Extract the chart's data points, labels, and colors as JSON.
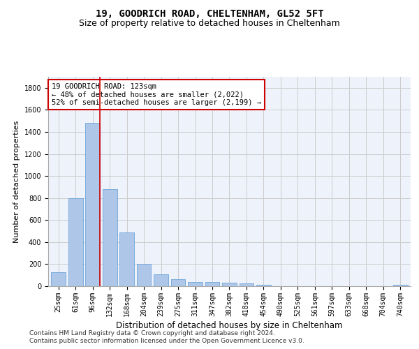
{
  "title1": "19, GOODRICH ROAD, CHELTENHAM, GL52 5FT",
  "title2": "Size of property relative to detached houses in Cheltenham",
  "xlabel": "Distribution of detached houses by size in Cheltenham",
  "ylabel": "Number of detached properties",
  "categories": [
    "25sqm",
    "61sqm",
    "96sqm",
    "132sqm",
    "168sqm",
    "204sqm",
    "239sqm",
    "275sqm",
    "311sqm",
    "347sqm",
    "382sqm",
    "418sqm",
    "454sqm",
    "490sqm",
    "525sqm",
    "561sqm",
    "597sqm",
    "633sqm",
    "668sqm",
    "704sqm",
    "740sqm"
  ],
  "values": [
    125,
    800,
    1480,
    880,
    490,
    205,
    105,
    65,
    40,
    35,
    30,
    25,
    10,
    0,
    0,
    0,
    0,
    0,
    0,
    0,
    15
  ],
  "bar_color": "#aec6e8",
  "bar_edgecolor": "#5b9bd5",
  "annotation_text": "19 GOODRICH ROAD: 123sqm\n← 48% of detached houses are smaller (2,022)\n52% of semi-detached houses are larger (2,199) →",
  "annotation_box_color": "#ffffff",
  "annotation_box_edgecolor": "#cc0000",
  "vline_color": "#cc0000",
  "ylim": [
    0,
    1900
  ],
  "yticks": [
    0,
    200,
    400,
    600,
    800,
    1000,
    1200,
    1400,
    1600,
    1800
  ],
  "grid_color": "#cccccc",
  "background_color": "#eef2fb",
  "footer1": "Contains HM Land Registry data © Crown copyright and database right 2024.",
  "footer2": "Contains public sector information licensed under the Open Government Licence v3.0.",
  "title1_fontsize": 10,
  "title2_fontsize": 9,
  "xlabel_fontsize": 8.5,
  "ylabel_fontsize": 8,
  "tick_fontsize": 7,
  "annotation_fontsize": 7.5,
  "footer_fontsize": 6.5
}
